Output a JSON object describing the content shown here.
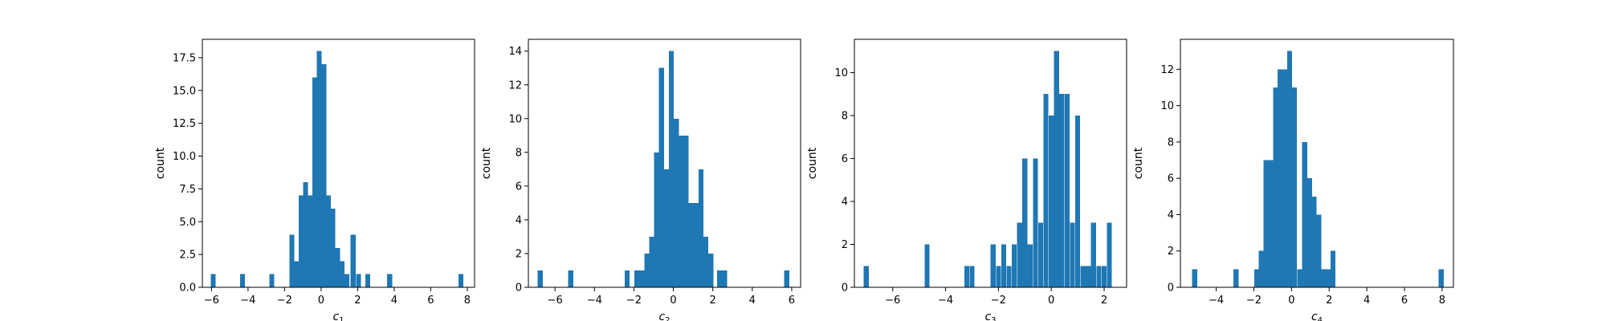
{
  "chart_data": [
    {
      "type": "bar",
      "xlabel": "c1",
      "xlabel_base": "c",
      "xlabel_sub": "1",
      "ylabel": "count",
      "xlim": [
        -6.5,
        8.4
      ],
      "ylim": [
        0,
        18.9
      ],
      "xticks": [
        -6,
        -4,
        -2,
        0,
        2,
        4,
        6,
        8
      ],
      "yticks": [
        0.0,
        2.5,
        5.0,
        7.5,
        10.0,
        12.5,
        15.0,
        17.5
      ],
      "ytick_labels": [
        "0.0",
        "2.5",
        "5.0",
        "7.5",
        "10.0",
        "12.5",
        "15.0",
        "17.5"
      ],
      "bin_width": 0.27,
      "bins": [
        [
          -5.9,
          1
        ],
        [
          -4.3,
          1
        ],
        [
          -2.7,
          1
        ],
        [
          -1.6,
          4
        ],
        [
          -1.35,
          2
        ],
        [
          -1.1,
          7
        ],
        [
          -0.85,
          8
        ],
        [
          -0.6,
          7
        ],
        [
          -0.35,
          16
        ],
        [
          -0.1,
          18
        ],
        [
          0.15,
          17
        ],
        [
          0.4,
          7
        ],
        [
          0.65,
          6
        ],
        [
          0.9,
          3
        ],
        [
          1.15,
          2
        ],
        [
          1.4,
          1
        ],
        [
          1.75,
          4
        ],
        [
          2.05,
          1
        ],
        [
          2.55,
          1
        ],
        [
          3.75,
          1
        ],
        [
          7.65,
          1
        ]
      ]
    },
    {
      "type": "bar",
      "xlabel": "c2",
      "xlabel_base": "c",
      "xlabel_sub": "2",
      "ylabel": "count",
      "xlim": [
        -7.35,
        6.45
      ],
      "ylim": [
        0,
        14.7
      ],
      "xticks": [
        -6,
        -4,
        -2,
        0,
        2,
        4,
        6
      ],
      "yticks": [
        0,
        2,
        4,
        6,
        8,
        10,
        12,
        14
      ],
      "ytick_labels": [
        "0",
        "2",
        "4",
        "6",
        "8",
        "10",
        "12",
        "14"
      ],
      "bin_width": 0.25,
      "bins": [
        [
          -6.75,
          1
        ],
        [
          -5.2,
          1
        ],
        [
          -2.35,
          1
        ],
        [
          -1.85,
          1
        ],
        [
          -1.6,
          1
        ],
        [
          -1.35,
          2
        ],
        [
          -1.1,
          3
        ],
        [
          -0.85,
          8
        ],
        [
          -0.6,
          13
        ],
        [
          -0.35,
          7
        ],
        [
          -0.1,
          14
        ],
        [
          0.15,
          10
        ],
        [
          0.4,
          9
        ],
        [
          0.65,
          9
        ],
        [
          0.9,
          5
        ],
        [
          1.15,
          5
        ],
        [
          1.4,
          7
        ],
        [
          1.65,
          3
        ],
        [
          1.9,
          2
        ],
        [
          2.35,
          1
        ],
        [
          2.6,
          1
        ],
        [
          5.75,
          1
        ]
      ]
    },
    {
      "type": "bar",
      "xlabel": "c3",
      "xlabel_base": "c",
      "xlabel_sub": "3",
      "ylabel": "count",
      "xlim": [
        -7.45,
        2.85
      ],
      "ylim": [
        0,
        11.55
      ],
      "xticks": [
        -6,
        -4,
        -2,
        0,
        2
      ],
      "yticks": [
        0,
        2,
        4,
        6,
        8,
        10
      ],
      "ytick_labels": [
        "0",
        "2",
        "4",
        "6",
        "8",
        "10"
      ],
      "bin_width": 0.19,
      "bins": [
        [
          -7.0,
          1
        ],
        [
          -4.7,
          2
        ],
        [
          -3.2,
          1
        ],
        [
          -3.0,
          1
        ],
        [
          -2.2,
          2
        ],
        [
          -2.0,
          1
        ],
        [
          -1.8,
          2
        ],
        [
          -1.6,
          1
        ],
        [
          -1.4,
          2
        ],
        [
          -1.2,
          3
        ],
        [
          -1.0,
          6
        ],
        [
          -0.8,
          2
        ],
        [
          -0.6,
          6
        ],
        [
          -0.4,
          3
        ],
        [
          -0.2,
          9
        ],
        [
          0.0,
          8
        ],
        [
          0.2,
          11
        ],
        [
          0.4,
          9
        ],
        [
          0.6,
          9
        ],
        [
          0.8,
          3
        ],
        [
          1.0,
          8
        ],
        [
          1.2,
          1
        ],
        [
          1.4,
          1
        ],
        [
          1.6,
          3
        ],
        [
          1.8,
          1
        ],
        [
          2.0,
          1
        ],
        [
          2.2,
          3
        ]
      ]
    },
    {
      "type": "bar",
      "xlabel": "c4",
      "xlabel_base": "c",
      "xlabel_sub": "4",
      "ylabel": "count",
      "xlim": [
        -5.9,
        8.6
      ],
      "ylim": [
        0,
        13.65
      ],
      "xticks": [
        -4,
        -2,
        0,
        2,
        4,
        6,
        8
      ],
      "yticks": [
        0,
        2,
        4,
        6,
        8,
        10,
        12
      ],
      "ytick_labels": [
        "0",
        "2",
        "4",
        "6",
        "8",
        "10",
        "12"
      ],
      "bin_width": 0.27,
      "bins": [
        [
          -5.15,
          1
        ],
        [
          -2.95,
          1
        ],
        [
          -1.85,
          1
        ],
        [
          -1.6,
          2
        ],
        [
          -1.35,
          7
        ],
        [
          -1.1,
          7
        ],
        [
          -0.85,
          11
        ],
        [
          -0.6,
          12
        ],
        [
          -0.35,
          12
        ],
        [
          -0.1,
          13
        ],
        [
          0.15,
          11
        ],
        [
          0.45,
          1
        ],
        [
          0.7,
          8
        ],
        [
          0.95,
          6
        ],
        [
          1.2,
          5
        ],
        [
          1.45,
          4
        ],
        [
          1.7,
          1
        ],
        [
          1.95,
          1
        ],
        [
          2.2,
          2
        ],
        [
          7.95,
          1
        ]
      ]
    }
  ],
  "colors": {
    "bar": "#1f77b4",
    "axes": "#000000",
    "background": "#ffffff"
  }
}
